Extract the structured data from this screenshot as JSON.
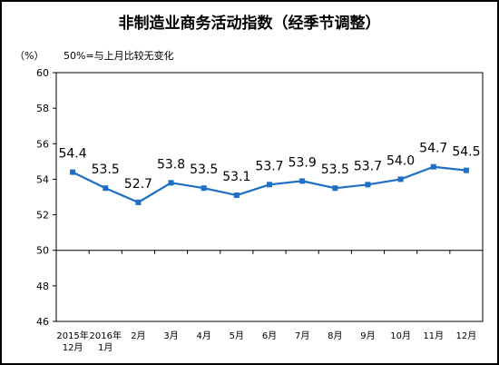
{
  "title": "非制造业商务活动指数（经季节调整）",
  "unit_label": "（%）",
  "note": "50%=与上月比较无变化",
  "colors": {
    "line": "#1f6fc4",
    "axis": "#000000",
    "grid": "#000000",
    "frame": "#000000"
  },
  "chart_data": {
    "type": "line",
    "title": "非制造业商务活动指数（经季节调整）",
    "xlabel": "",
    "ylabel": "（%）",
    "categories": [
      [
        "2015年",
        "12月"
      ],
      [
        "2016年",
        "1月"
      ],
      [
        "2月"
      ],
      [
        "3月"
      ],
      [
        "4月"
      ],
      [
        "5月"
      ],
      [
        "6月"
      ],
      [
        "7月"
      ],
      [
        "8月"
      ],
      [
        "9月"
      ],
      [
        "10月"
      ],
      [
        "11月"
      ],
      [
        "12月"
      ]
    ],
    "values": [
      54.4,
      53.5,
      52.7,
      53.8,
      53.5,
      53.1,
      53.7,
      53.9,
      53.5,
      53.7,
      54.0,
      54.7,
      54.5
    ],
    "value_labels": [
      "54.4",
      "53.5",
      "52.7",
      "53.8",
      "53.5",
      "53.1",
      "53.7",
      "53.9",
      "53.5",
      "53.7",
      "54.0",
      "54.7",
      "54.5"
    ],
    "ylim": [
      46,
      60
    ],
    "yticks": [
      46,
      48,
      50,
      52,
      54,
      56,
      58,
      60
    ],
    "reference_line": 50,
    "grid": false,
    "legend": "none"
  }
}
